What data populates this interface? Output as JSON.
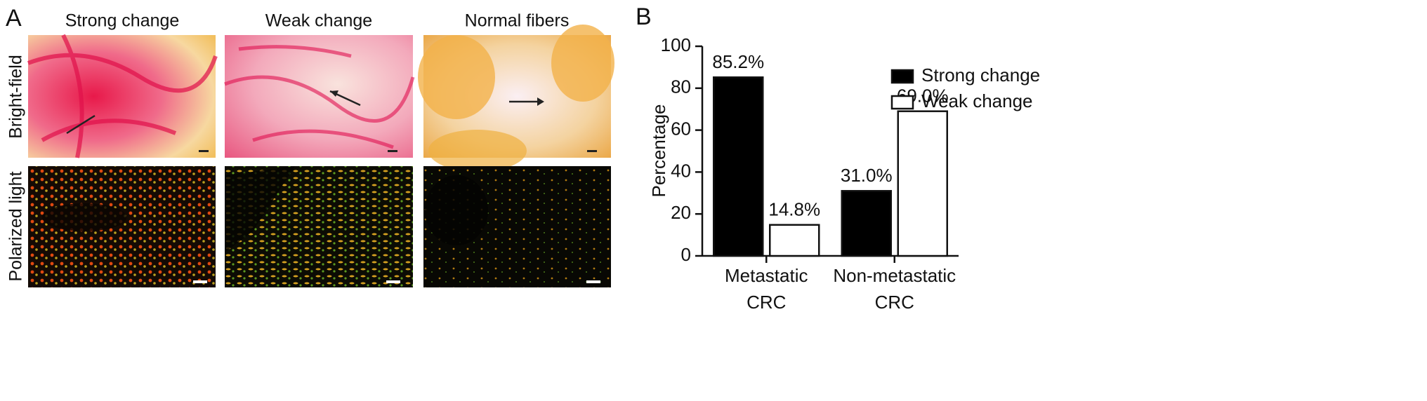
{
  "panel_a": {
    "label": "A",
    "columns": [
      "Strong change",
      "Weak change",
      "Normal fibers"
    ],
    "rows": [
      "Bright-field",
      "Polarized light"
    ]
  },
  "panel_b": {
    "label": "B"
  },
  "chart_data": {
    "type": "bar",
    "categories": [
      "Metastatic CRC",
      "Non-metastatic CRC"
    ],
    "series": [
      {
        "name": "Strong change",
        "color": "#000000",
        "values": [
          85.2,
          31.0
        ],
        "value_labels": [
          "85.2%",
          "31.0%"
        ]
      },
      {
        "name": "Weak change",
        "color": "#ffffff",
        "values": [
          14.8,
          69.0
        ],
        "value_labels": [
          "14.8%",
          "69.0%"
        ]
      }
    ],
    "ylabel": "Percentage",
    "ylim": [
      0,
      100
    ],
    "yticks": [
      0,
      20,
      40,
      60,
      80,
      100
    ],
    "grid": false,
    "legend": "right"
  }
}
